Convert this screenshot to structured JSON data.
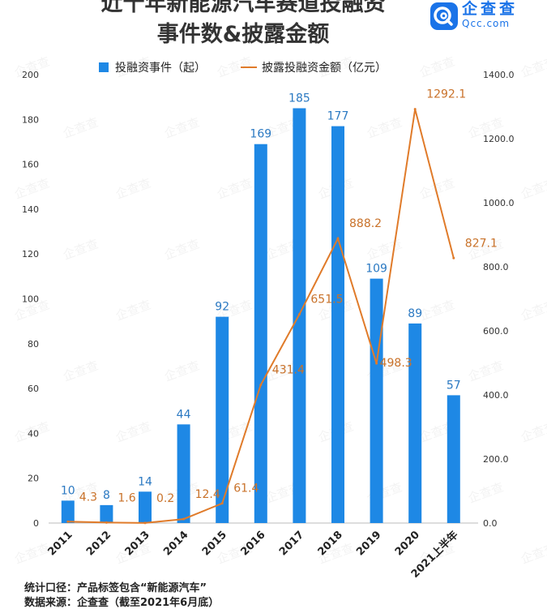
{
  "header": {
    "title_line1": "近十年新能源汽车赛道投融资",
    "title_line2": "事件数&披露金额"
  },
  "logo": {
    "name": "企查查",
    "domain": "Qcc.com",
    "icon": "qcc-logo-icon"
  },
  "watermark": "企查查",
  "footnote": {
    "line1": "统计口径：产品标签包含“新能源汽车”",
    "line2": "数据来源：企查查（截至2021年6月底）"
  },
  "colors": {
    "bar": "#1e88e5",
    "line": "#e07b2a",
    "bar_label": "#2b79c2",
    "line_label": "#c9722a"
  },
  "chart_data": {
    "type": "bar+line",
    "categories": [
      "2011",
      "2012",
      "2013",
      "2014",
      "2015",
      "2016",
      "2017",
      "2018",
      "2019",
      "2020",
      "2021上半年"
    ],
    "series": [
      {
        "name": "投融资事件（起）",
        "type": "bar",
        "axis": "left",
        "values": [
          10,
          8,
          14,
          44,
          92,
          169,
          185,
          177,
          109,
          89,
          57
        ],
        "labels": [
          "10",
          "8",
          "14",
          "44",
          "92",
          "169",
          "185",
          "177",
          "109",
          "89",
          "57"
        ]
      },
      {
        "name": "披露投融资金额（亿元）",
        "type": "line",
        "axis": "right",
        "values": [
          4.3,
          1.6,
          0.2,
          12.4,
          61.4,
          431.4,
          651.5,
          888.2,
          498.3,
          1292.1,
          827.1
        ],
        "labels": [
          "4.3",
          "1.6",
          "0.2",
          "12.4",
          "61.4",
          "431.4",
          "651.5",
          "888.2",
          "498.3",
          "1292.1",
          "827.1"
        ]
      }
    ],
    "y_left": {
      "min": 0,
      "max": 200,
      "ticks": [
        "0",
        "20",
        "40",
        "60",
        "80",
        "100",
        "120",
        "140",
        "160",
        "180",
        "200"
      ]
    },
    "y_right": {
      "min": 0,
      "max": 1400,
      "ticks": [
        "0.0",
        "200.0",
        "400.0",
        "600.0",
        "800.0",
        "1000.0",
        "1200.0",
        "1400.0"
      ]
    },
    "legend": [
      "投融资事件（起）",
      "披露投融资金额（亿元）"
    ]
  }
}
